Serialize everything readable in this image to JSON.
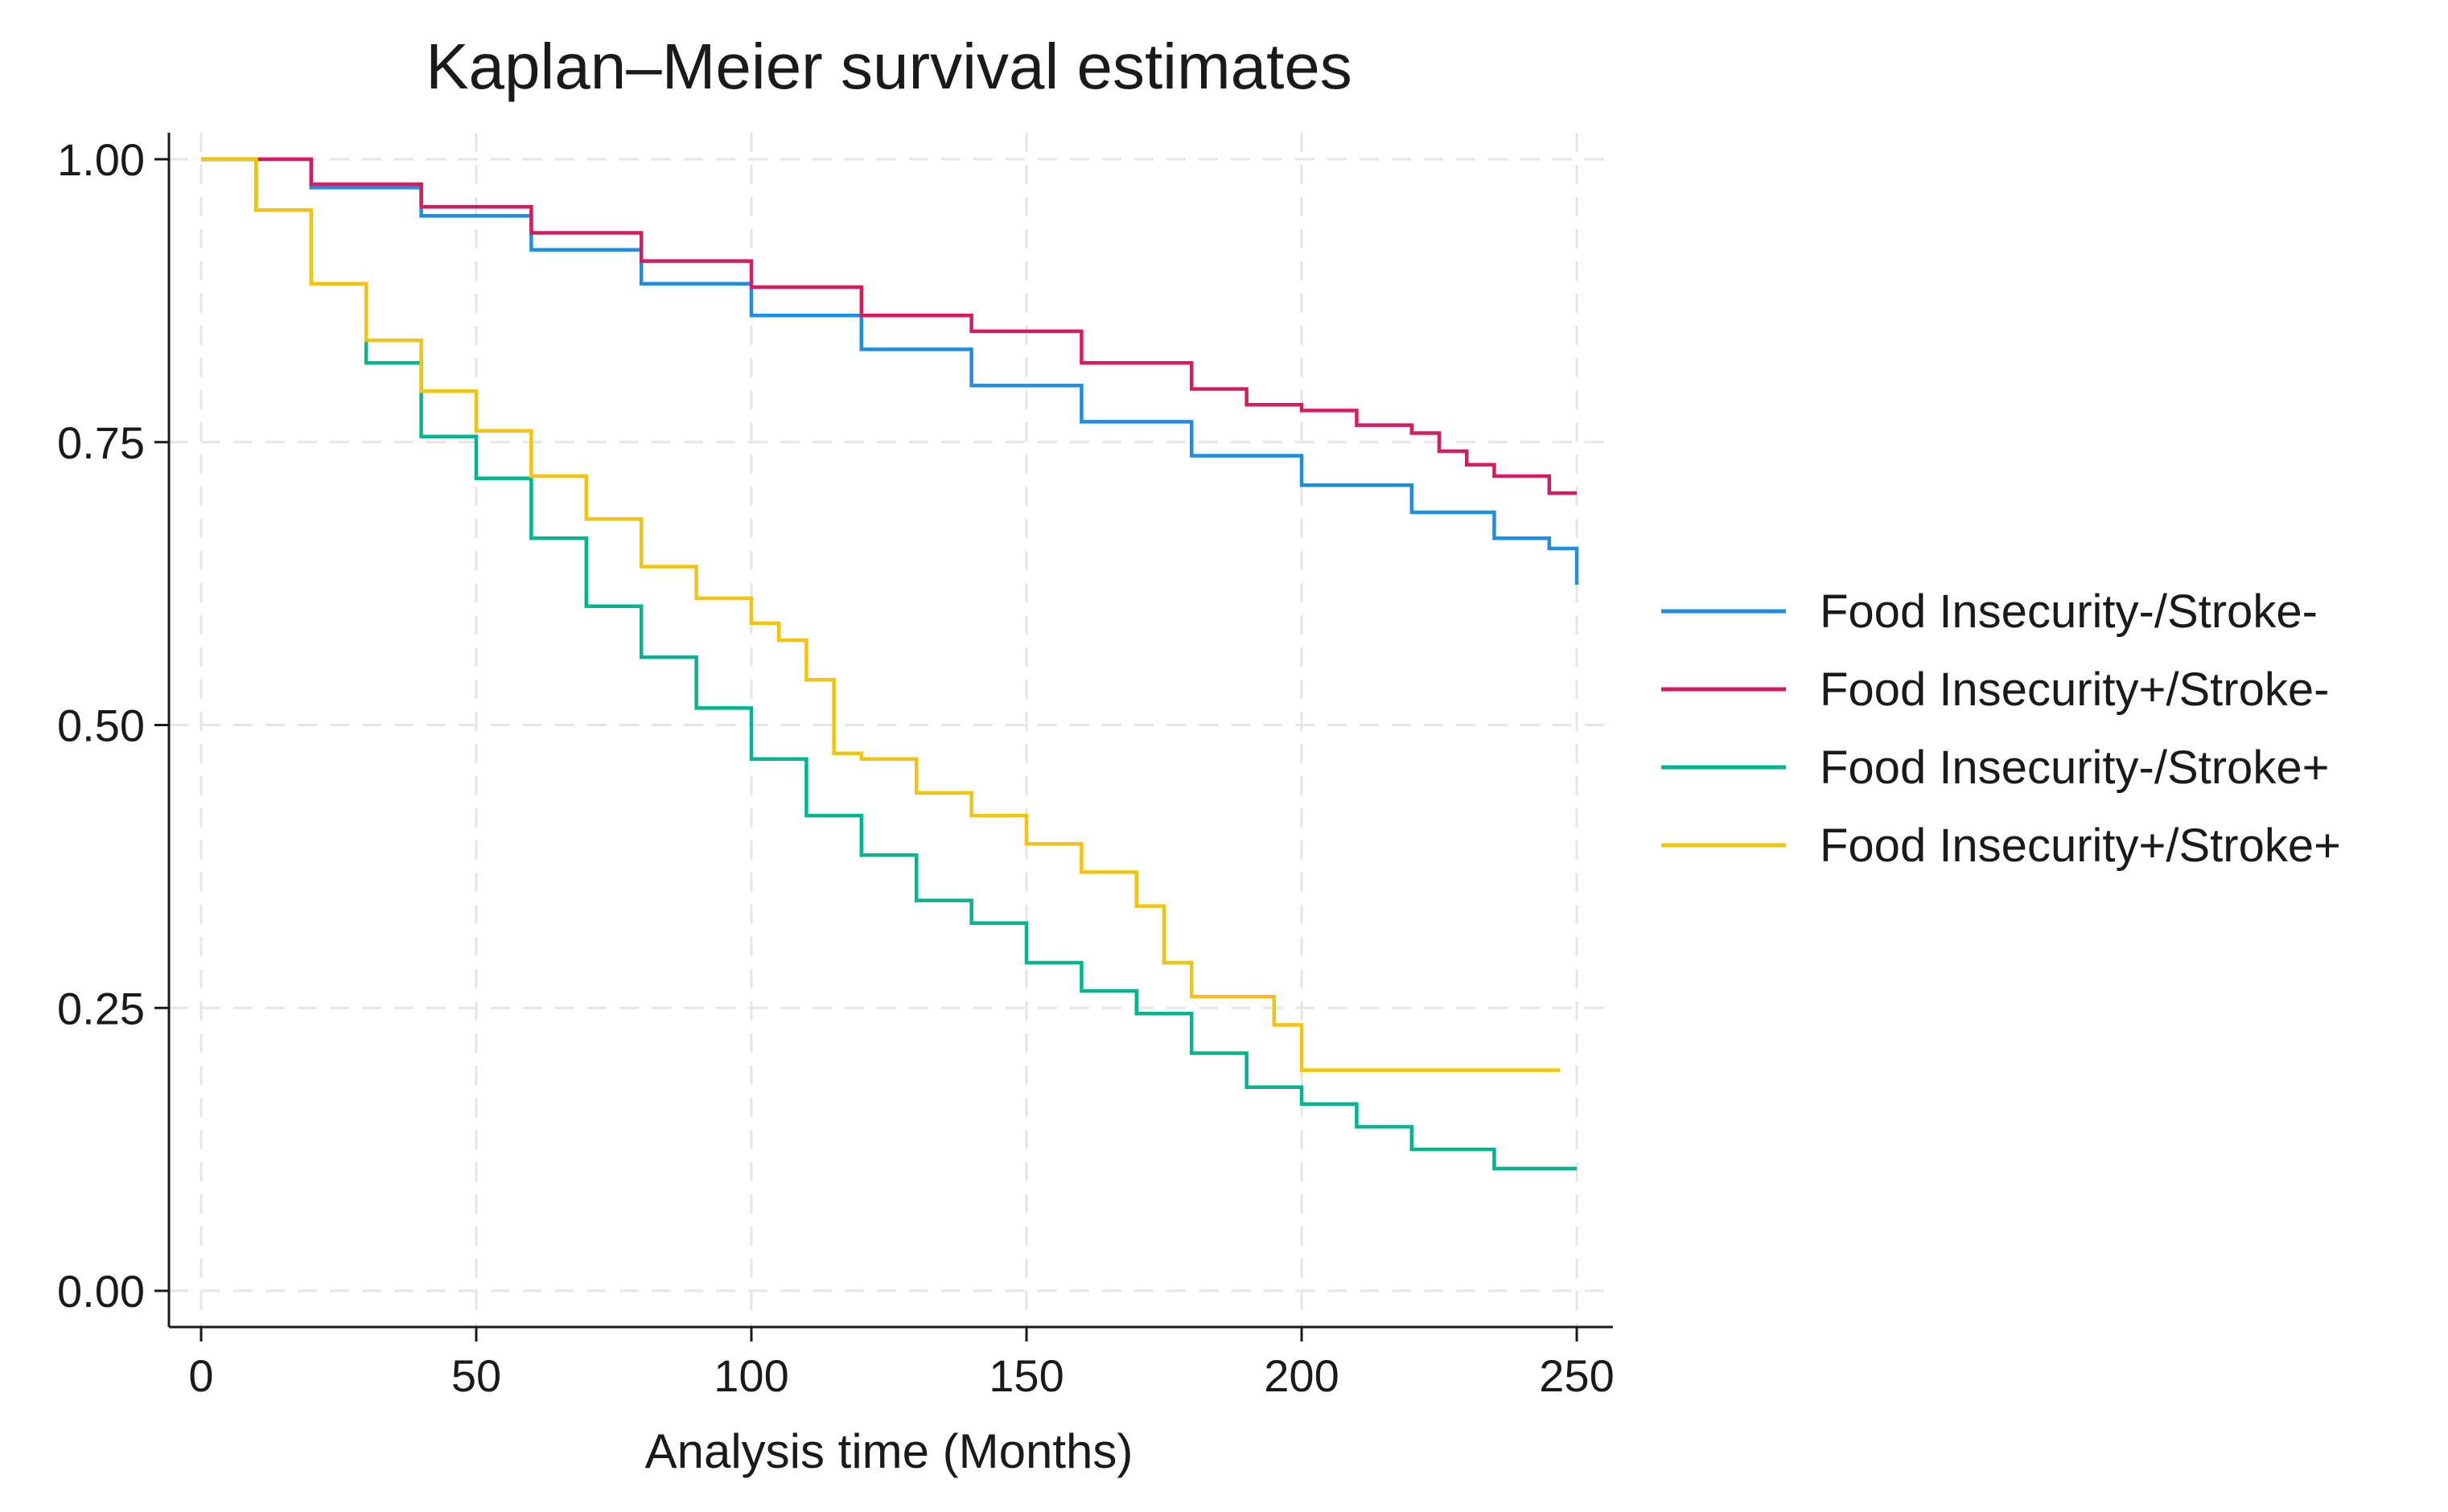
{
  "chart_data": {
    "type": "line",
    "title": "Kaplan–Meier survival estimates",
    "xlabel": "Analysis time (Months)",
    "ylabel": "",
    "xlim": [
      0,
      250
    ],
    "ylim": [
      0,
      1
    ],
    "x_ticks": [
      "0",
      "50",
      "100",
      "150",
      "200",
      "250"
    ],
    "x_tick_values": [
      0,
      50,
      100,
      150,
      200,
      250
    ],
    "y_ticks": [
      "0.00",
      "0.25",
      "0.50",
      "0.75",
      "1.00"
    ],
    "y_tick_values": [
      0,
      0.25,
      0.5,
      0.75,
      1.0
    ],
    "grid": true,
    "legend_position": "right",
    "series": [
      {
        "name": "Food Insecurity-/Stroke-",
        "color": "#1f8ee0",
        "x": [
          0,
          20,
          40,
          60,
          80,
          100,
          120,
          140,
          160,
          180,
          200,
          220,
          235,
          245,
          250,
          250
        ],
        "y": [
          1.0,
          0.975,
          0.95,
          0.92,
          0.89,
          0.862,
          0.832,
          0.8,
          0.768,
          0.738,
          0.712,
          0.688,
          0.665,
          0.656,
          0.656,
          0.624
        ]
      },
      {
        "name": "Food Insecurity+/Stroke-",
        "color": "#d81b60",
        "x": [
          0,
          20,
          40,
          60,
          80,
          100,
          120,
          140,
          160,
          180,
          190,
          200,
          210,
          220,
          225,
          230,
          235,
          240,
          245,
          250
        ],
        "y": [
          1.0,
          0.978,
          0.958,
          0.935,
          0.91,
          0.887,
          0.862,
          0.848,
          0.82,
          0.797,
          0.783,
          0.778,
          0.765,
          0.758,
          0.742,
          0.73,
          0.72,
          0.72,
          0.705,
          0.705
        ]
      },
      {
        "name": "Food Insecurity-/Stroke+",
        "color": "#00b58f",
        "x": [
          0,
          10,
          20,
          30,
          40,
          50,
          60,
          70,
          80,
          90,
          100,
          110,
          120,
          130,
          140,
          150,
          160,
          170,
          180,
          190,
          200,
          210,
          220,
          230,
          235,
          250
        ],
        "y": [
          1.0,
          0.955,
          0.89,
          0.82,
          0.755,
          0.718,
          0.665,
          0.605,
          0.56,
          0.515,
          0.47,
          0.42,
          0.385,
          0.345,
          0.325,
          0.29,
          0.265,
          0.245,
          0.21,
          0.18,
          0.165,
          0.145,
          0.125,
          0.125,
          0.108,
          0.108
        ]
      },
      {
        "name": "Food Insecurity+/Stroke+",
        "color": "#f2c40f",
        "x": [
          0,
          10,
          20,
          30,
          40,
          50,
          60,
          70,
          80,
          90,
          100,
          105,
          110,
          115,
          120,
          130,
          140,
          150,
          160,
          165,
          170,
          175,
          180,
          190,
          195,
          200,
          210,
          220,
          230,
          247
        ],
        "y": [
          1.0,
          0.955,
          0.89,
          0.84,
          0.795,
          0.76,
          0.72,
          0.682,
          0.64,
          0.612,
          0.59,
          0.575,
          0.54,
          0.475,
          0.47,
          0.44,
          0.42,
          0.395,
          0.37,
          0.37,
          0.34,
          0.29,
          0.26,
          0.26,
          0.235,
          0.195,
          0.195,
          0.195,
          0.195,
          0.195
        ]
      }
    ]
  }
}
